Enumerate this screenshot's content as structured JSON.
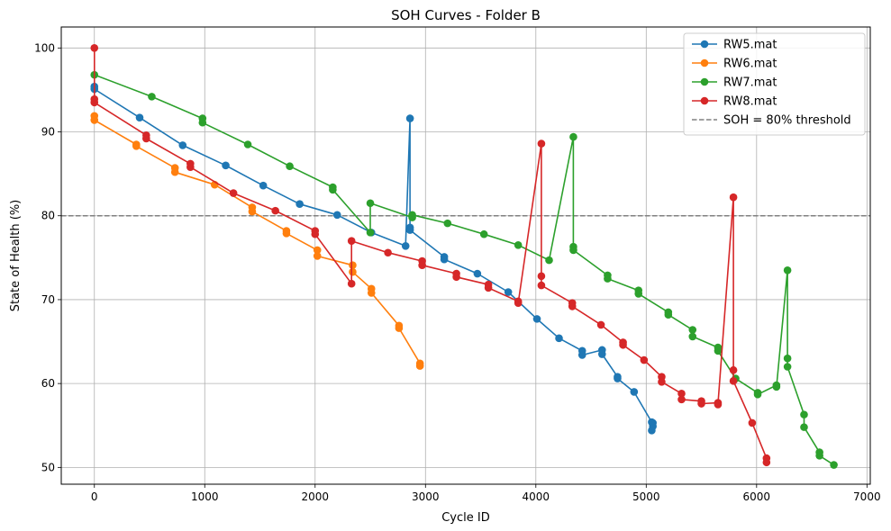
{
  "chart_data": {
    "type": "line",
    "title": "SOH Curves - Folder B",
    "xlabel": "Cycle ID",
    "ylabel": "State of Health (%)",
    "xlim": [
      -300,
      7030
    ],
    "ylim": [
      48.0,
      102.5
    ],
    "xticks": [
      0,
      1000,
      2000,
      3000,
      4000,
      5000,
      6000,
      7000
    ],
    "yticks": [
      50,
      60,
      70,
      80,
      90,
      100
    ],
    "grid": true,
    "legend_position": "top-right",
    "threshold": {
      "label": "SOH = 80% threshold",
      "value": 80,
      "color": "#808080"
    },
    "series": [
      {
        "name": "RW5.mat",
        "color": "#1f77b4",
        "points": [
          [
            0,
            95.4
          ],
          [
            0,
            95.1
          ],
          [
            410,
            91.7
          ],
          [
            800,
            88.4
          ],
          [
            1190,
            86.0
          ],
          [
            1530,
            83.6
          ],
          [
            1860,
            81.4
          ],
          [
            2200,
            80.1
          ],
          [
            2510,
            78.0
          ],
          [
            2820,
            76.4
          ],
          [
            2860,
            91.6
          ],
          [
            2860,
            78.6
          ],
          [
            2860,
            78.3
          ],
          [
            3170,
            75.1
          ],
          [
            3170,
            74.8
          ],
          [
            3470,
            73.1
          ],
          [
            3750,
            70.9
          ],
          [
            4010,
            67.7
          ],
          [
            4210,
            65.4
          ],
          [
            4420,
            63.9
          ],
          [
            4420,
            63.4
          ],
          [
            4600,
            64.0
          ],
          [
            4600,
            63.5
          ],
          [
            4740,
            60.8
          ],
          [
            4740,
            60.6
          ],
          [
            4890,
            59.0
          ],
          [
            5050,
            55.4
          ],
          [
            5050,
            54.4
          ],
          [
            5060,
            55.3
          ],
          [
            5060,
            54.9
          ]
        ]
      },
      {
        "name": "RW6.mat",
        "color": "#ff7f0e",
        "points": [
          [
            0,
            91.9
          ],
          [
            0,
            91.4
          ],
          [
            380,
            88.5
          ],
          [
            380,
            88.3
          ],
          [
            730,
            85.7
          ],
          [
            730,
            85.2
          ],
          [
            1090,
            83.7
          ],
          [
            1430,
            81.0
          ],
          [
            1430,
            80.5
          ],
          [
            1740,
            78.2
          ],
          [
            1740,
            77.9
          ],
          [
            2020,
            75.9
          ],
          [
            2020,
            75.2
          ],
          [
            2340,
            74.1
          ],
          [
            2340,
            73.3
          ],
          [
            2510,
            71.3
          ],
          [
            2510,
            70.8
          ],
          [
            2760,
            66.9
          ],
          [
            2760,
            66.6
          ],
          [
            2950,
            62.4
          ],
          [
            2950,
            62.1
          ]
        ]
      },
      {
        "name": "RW7.mat",
        "color": "#2ca02c",
        "points": [
          [
            0,
            96.8
          ],
          [
            520,
            94.2
          ],
          [
            980,
            91.6
          ],
          [
            980,
            91.1
          ],
          [
            1390,
            88.5
          ],
          [
            1770,
            85.9
          ],
          [
            2160,
            83.4
          ],
          [
            2160,
            83.1
          ],
          [
            2500,
            78.0
          ],
          [
            2500,
            81.5
          ],
          [
            2880,
            79.8
          ],
          [
            2880,
            80.1
          ],
          [
            3200,
            79.1
          ],
          [
            3530,
            77.8
          ],
          [
            3840,
            76.5
          ],
          [
            4120,
            74.7
          ],
          [
            4340,
            89.4
          ],
          [
            4340,
            76.3
          ],
          [
            4340,
            75.9
          ],
          [
            4650,
            72.9
          ],
          [
            4650,
            72.5
          ],
          [
            4930,
            71.1
          ],
          [
            4930,
            70.7
          ],
          [
            5200,
            68.5
          ],
          [
            5200,
            68.2
          ],
          [
            5420,
            66.4
          ],
          [
            5420,
            65.6
          ],
          [
            5650,
            64.3
          ],
          [
            5650,
            63.9
          ],
          [
            5810,
            60.6
          ],
          [
            6010,
            58.9
          ],
          [
            6010,
            58.7
          ],
          [
            6180,
            59.8
          ],
          [
            6180,
            59.6
          ],
          [
            6280,
            73.5
          ],
          [
            6280,
            63.0
          ],
          [
            6280,
            62.0
          ],
          [
            6430,
            56.3
          ],
          [
            6430,
            54.8
          ],
          [
            6570,
            51.8
          ],
          [
            6570,
            51.4
          ],
          [
            6700,
            50.3
          ]
        ]
      },
      {
        "name": "RW8.mat",
        "color": "#d62728",
        "points": [
          [
            0,
            100.0
          ],
          [
            0,
            93.9
          ],
          [
            0,
            93.5
          ],
          [
            470,
            89.6
          ],
          [
            470,
            89.2
          ],
          [
            870,
            86.2
          ],
          [
            870,
            85.8
          ],
          [
            1260,
            82.7
          ],
          [
            1640,
            80.6
          ],
          [
            2000,
            78.2
          ],
          [
            2000,
            77.8
          ],
          [
            2330,
            71.9
          ],
          [
            2330,
            77.0
          ],
          [
            2660,
            75.6
          ],
          [
            2970,
            74.6
          ],
          [
            2970,
            74.1
          ],
          [
            3280,
            73.1
          ],
          [
            3280,
            72.7
          ],
          [
            3570,
            71.8
          ],
          [
            3570,
            71.4
          ],
          [
            3840,
            69.8
          ],
          [
            3840,
            69.6
          ],
          [
            4050,
            88.6
          ],
          [
            4050,
            72.8
          ],
          [
            4050,
            71.7
          ],
          [
            4330,
            69.6
          ],
          [
            4330,
            69.2
          ],
          [
            4590,
            67.0
          ],
          [
            4790,
            64.9
          ],
          [
            4790,
            64.6
          ],
          [
            4980,
            62.8
          ],
          [
            5140,
            60.8
          ],
          [
            5140,
            60.2
          ],
          [
            5320,
            58.8
          ],
          [
            5320,
            58.1
          ],
          [
            5500,
            57.9
          ],
          [
            5500,
            57.6
          ],
          [
            5650,
            57.7
          ],
          [
            5650,
            57.5
          ],
          [
            5790,
            82.2
          ],
          [
            5790,
            61.6
          ],
          [
            5790,
            60.3
          ],
          [
            5960,
            55.3
          ],
          [
            6090,
            51.1
          ],
          [
            6090,
            50.6
          ]
        ]
      }
    ]
  }
}
